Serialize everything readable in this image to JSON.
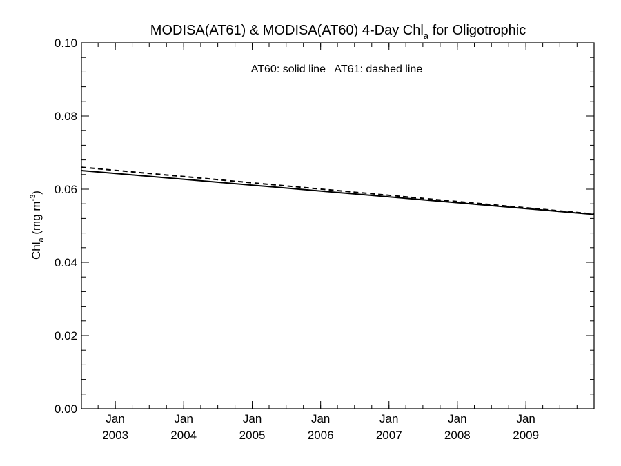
{
  "chart_data": {
    "type": "line",
    "title": {
      "main": "MODISA(AT61) & MODISA(AT60) 4-Day Chl",
      "sub": "a",
      "rest": " for Oligotrophic"
    },
    "ylabel": {
      "main": "Chl",
      "sub": "a",
      "mid": " (mg m",
      "sup": "-3",
      "end": ")"
    },
    "annotation": "AT60: solid line   AT61: dashed line",
    "ylim": [
      0.0,
      0.1
    ],
    "yticks": [
      "0.00",
      "0.02",
      "0.04",
      "0.06",
      "0.08",
      "0.10"
    ],
    "xlim": [
      "2002-07-04",
      "2009-12-31"
    ],
    "xticks": [
      {
        "date": "2003-01-01",
        "month": "Jan",
        "year": "2003"
      },
      {
        "date": "2004-01-01",
        "month": "Jan",
        "year": "2004"
      },
      {
        "date": "2005-01-01",
        "month": "Jan",
        "year": "2005"
      },
      {
        "date": "2006-01-01",
        "month": "Jan",
        "year": "2006"
      },
      {
        "date": "2007-01-01",
        "month": "Jan",
        "year": "2007"
      },
      {
        "date": "2008-01-01",
        "month": "Jan",
        "year": "2008"
      },
      {
        "date": "2009-01-01",
        "month": "Jan",
        "year": "2009"
      }
    ],
    "series": [
      {
        "name": "AT60",
        "style": "solid",
        "color": "#000000",
        "x": [
          "2002-07-04",
          "2009-12-31"
        ],
        "y": [
          0.0651,
          0.0531
        ]
      },
      {
        "name": "AT61",
        "style": "dashed",
        "color": "#000000",
        "x": [
          "2002-07-04",
          "2009-12-31"
        ],
        "y": [
          0.066,
          0.0532
        ]
      }
    ],
    "grid": false,
    "legend": "none"
  }
}
